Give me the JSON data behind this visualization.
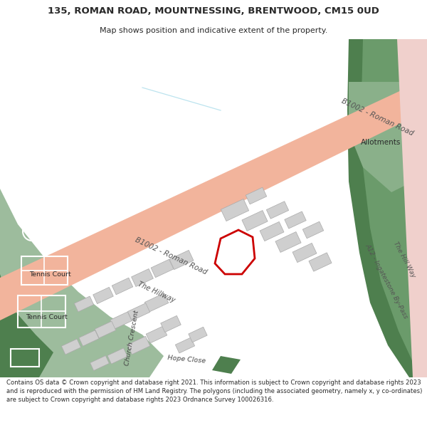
{
  "title": "135, ROMAN ROAD, MOUNTNESSING, BRENTWOOD, CM15 0UD",
  "subtitle": "Map shows position and indicative extent of the property.",
  "footer": "Contains OS data © Crown copyright and database right 2021. This information is subject to Crown copyright and database rights 2023 and is reproduced with the permission of HM Land Registry. The polygons (including the associated geometry, namely x, y co-ordinates) are subject to Crown copyright and database rights 2023 Ordnance Survey 100026316.",
  "bg": "#ffffff",
  "map_bg": "#f5f5f3",
  "salmon": "#f2b49c",
  "salmon_light": "#f5cdc5",
  "salmon_a12": "#f0d0cc",
  "green_dark": "#4e7f4e",
  "green_mid": "#6b9b6b",
  "green_light": "#9dbc9d",
  "green_allot": "#8ab08a",
  "gray_bld": "#cfcfcf",
  "gray_bld_edge": "#aaaaaa",
  "road_text": "#555555",
  "plot_red": "#cc0000",
  "text_dark": "#2a2a2a",
  "white": "#ffffff"
}
